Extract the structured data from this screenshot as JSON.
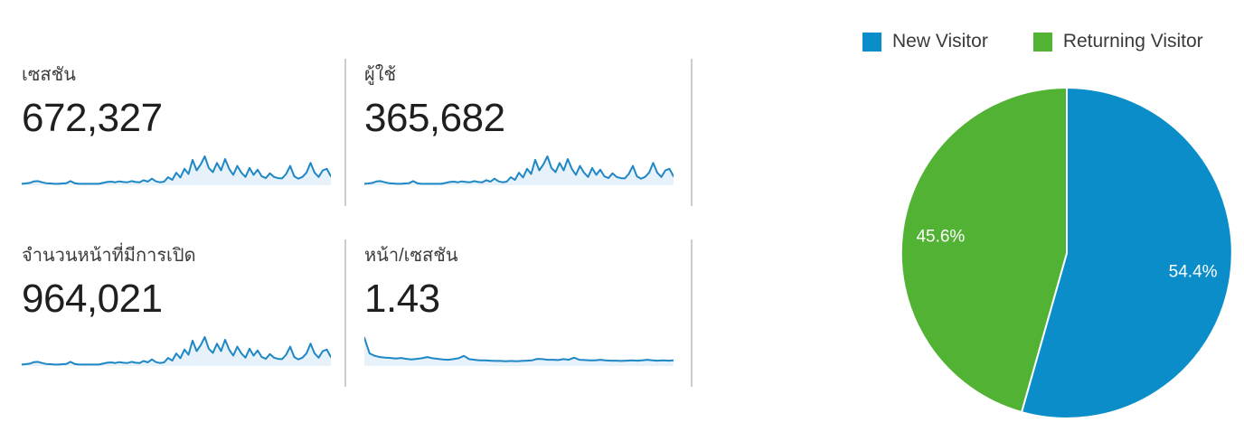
{
  "page": {
    "background": "#ffffff"
  },
  "colors": {
    "spark_line": "#1e87c5",
    "spark_fill": "#e7f1f9",
    "divider": "#cccccc",
    "metric_label": "#3c3c3c",
    "metric_value": "#1f1f1f",
    "legend_text": "#3a3a3a",
    "pie_label_text": "#ffffff"
  },
  "chart_data": [
    {
      "type": "area",
      "metric": "sessions",
      "label": "เซสชัน",
      "value": "672,327",
      "ylim": [
        0,
        100
      ],
      "grid": false,
      "points": [
        5,
        6,
        8,
        13,
        14,
        10,
        7,
        6,
        5,
        5,
        6,
        7,
        14,
        7,
        5,
        5,
        5,
        5,
        5,
        5,
        8,
        11,
        12,
        10,
        13,
        11,
        10,
        14,
        11,
        10,
        17,
        12,
        22,
        13,
        10,
        12,
        27,
        18,
        42,
        26,
        55,
        38,
        85,
        50,
        70,
        97,
        58,
        44,
        75,
        50,
        88,
        55,
        35,
        65,
        42,
        28,
        58,
        35,
        52,
        30,
        24,
        40,
        28,
        24,
        23,
        38,
        65,
        30,
        22,
        28,
        42,
        75,
        42,
        28,
        50,
        55,
        30
      ]
    },
    {
      "type": "area",
      "metric": "users",
      "label": "ผู้ใช้",
      "value": "365,682",
      "ylim": [
        0,
        100
      ],
      "grid": false,
      "points": [
        5,
        6,
        8,
        13,
        14,
        10,
        7,
        6,
        5,
        5,
        6,
        7,
        14,
        7,
        5,
        5,
        5,
        5,
        5,
        5,
        8,
        11,
        12,
        10,
        13,
        11,
        10,
        14,
        11,
        10,
        17,
        12,
        22,
        13,
        10,
        12,
        27,
        18,
        42,
        26,
        55,
        38,
        85,
        50,
        70,
        97,
        58,
        44,
        75,
        50,
        88,
        55,
        35,
        65,
        42,
        28,
        58,
        35,
        52,
        30,
        24,
        40,
        28,
        24,
        23,
        38,
        65,
        30,
        22,
        28,
        42,
        75,
        42,
        28,
        50,
        55,
        30
      ]
    },
    {
      "type": "area",
      "metric": "pageviews",
      "label": "จำนวนหน้าที่มีการเปิด",
      "value": "964,021",
      "ylim": [
        0,
        100
      ],
      "grid": false,
      "points": [
        5,
        6,
        8,
        13,
        14,
        10,
        7,
        6,
        5,
        5,
        6,
        7,
        14,
        7,
        5,
        5,
        5,
        5,
        5,
        5,
        8,
        11,
        12,
        10,
        13,
        11,
        10,
        14,
        11,
        10,
        17,
        12,
        22,
        13,
        10,
        12,
        27,
        18,
        42,
        26,
        55,
        38,
        85,
        50,
        70,
        97,
        58,
        44,
        75,
        50,
        88,
        55,
        35,
        65,
        42,
        28,
        58,
        35,
        52,
        30,
        24,
        40,
        28,
        24,
        23,
        38,
        65,
        30,
        22,
        28,
        42,
        75,
        42,
        28,
        50,
        55,
        30
      ]
    },
    {
      "type": "area",
      "metric": "pages_per_session",
      "label": "หน้า/เซสชัน",
      "value": "1.43",
      "ylim": [
        0,
        100
      ],
      "grid": false,
      "points": [
        95,
        42,
        34,
        30,
        28,
        27,
        25,
        27,
        24,
        22,
        24,
        26,
        30,
        26,
        24,
        22,
        21,
        23,
        26,
        34,
        23,
        21,
        19,
        19,
        18,
        17,
        17,
        16,
        17,
        16,
        17,
        18,
        19,
        24,
        23,
        21,
        21,
        20,
        23,
        21,
        28,
        21,
        20,
        19,
        19,
        21,
        19,
        18,
        18,
        17,
        18,
        19,
        18,
        19,
        21,
        19,
        18,
        19,
        18,
        19
      ]
    },
    {
      "type": "pie",
      "metric": "visitor_type",
      "legend_position": "top",
      "start_angle": "top-clockwise",
      "slices": [
        {
          "label": "New Visitor",
          "value": 54.4,
          "display": "54.4%",
          "color": "#0a8dc9"
        },
        {
          "label": "Returning Visitor",
          "value": 45.6,
          "display": "45.6%",
          "color": "#52b233"
        }
      ]
    }
  ]
}
